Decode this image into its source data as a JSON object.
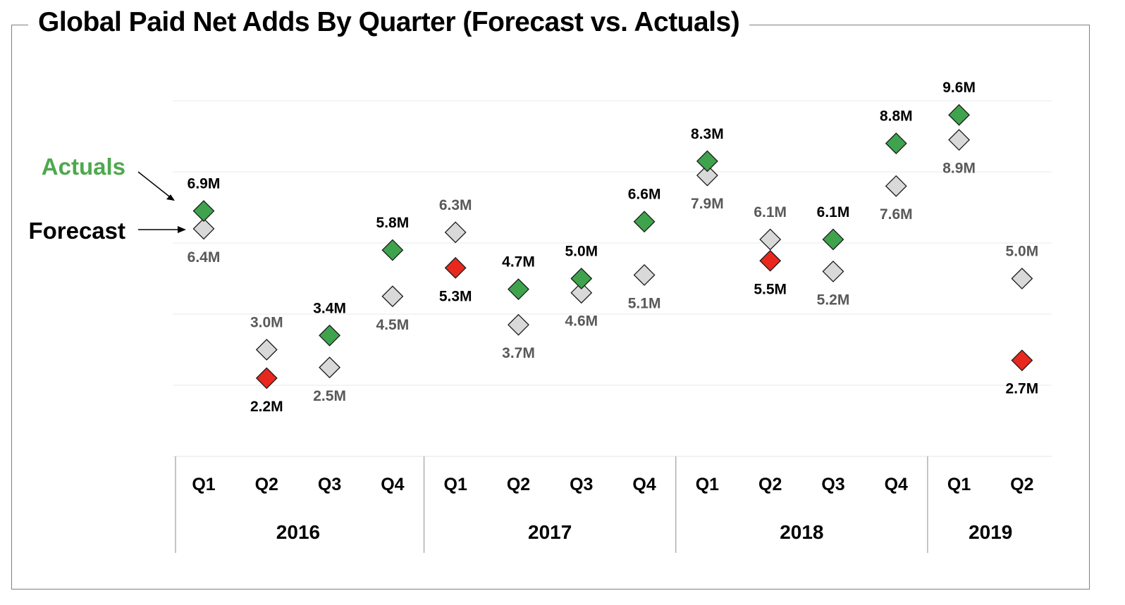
{
  "chart_data": {
    "type": "scatter",
    "title": "Global Paid Net Adds By Quarter (Forecast vs. Actuals)",
    "xlabel": "",
    "ylabel": "",
    "ylim": [
      0,
      10
    ],
    "grid": true,
    "quarters": [
      "Q1",
      "Q2",
      "Q3",
      "Q4",
      "Q1",
      "Q2",
      "Q3",
      "Q4",
      "Q1",
      "Q2",
      "Q3",
      "Q4",
      "Q1",
      "Q2"
    ],
    "years": [
      {
        "label": "2016",
        "quarters": 4
      },
      {
        "label": "2017",
        "quarters": 4
      },
      {
        "label": "2018",
        "quarters": 4
      },
      {
        "label": "2019",
        "quarters": 2
      }
    ],
    "legend": {
      "actuals": "Actuals",
      "forecast": "Forecast",
      "placement": "left"
    },
    "series": [
      {
        "name": "Forecast",
        "values": [
          6.4,
          3.0,
          2.5,
          4.5,
          6.3,
          3.7,
          4.6,
          5.1,
          7.9,
          6.1,
          5.2,
          7.6,
          8.9,
          5.0
        ],
        "labels": [
          "6.4M",
          "3.0M",
          "2.5M",
          "4.5M",
          "6.3M",
          "3.7M",
          "4.6M",
          "5.1M",
          "7.9M",
          "6.1M",
          "5.2M",
          "7.6M",
          "8.9M",
          "5.0M"
        ]
      },
      {
        "name": "Actuals",
        "values": [
          6.9,
          2.2,
          3.4,
          5.8,
          5.3,
          4.7,
          5.0,
          6.6,
          8.3,
          5.5,
          6.1,
          8.8,
          9.6,
          2.7
        ],
        "labels": [
          "6.9M",
          "2.2M",
          "3.4M",
          "5.8M",
          "5.3M",
          "4.7M",
          "5.0M",
          "6.6M",
          "8.3M",
          "5.5M",
          "6.1M",
          "8.8M",
          "9.6M",
          "2.7M"
        ]
      }
    ],
    "colors": {
      "forecast": "#d9d9d9",
      "actual_beat": "#3fa34d",
      "actual_miss": "#e8281e",
      "grid": "#eeeeee",
      "axis": "#a6a6a6"
    }
  }
}
